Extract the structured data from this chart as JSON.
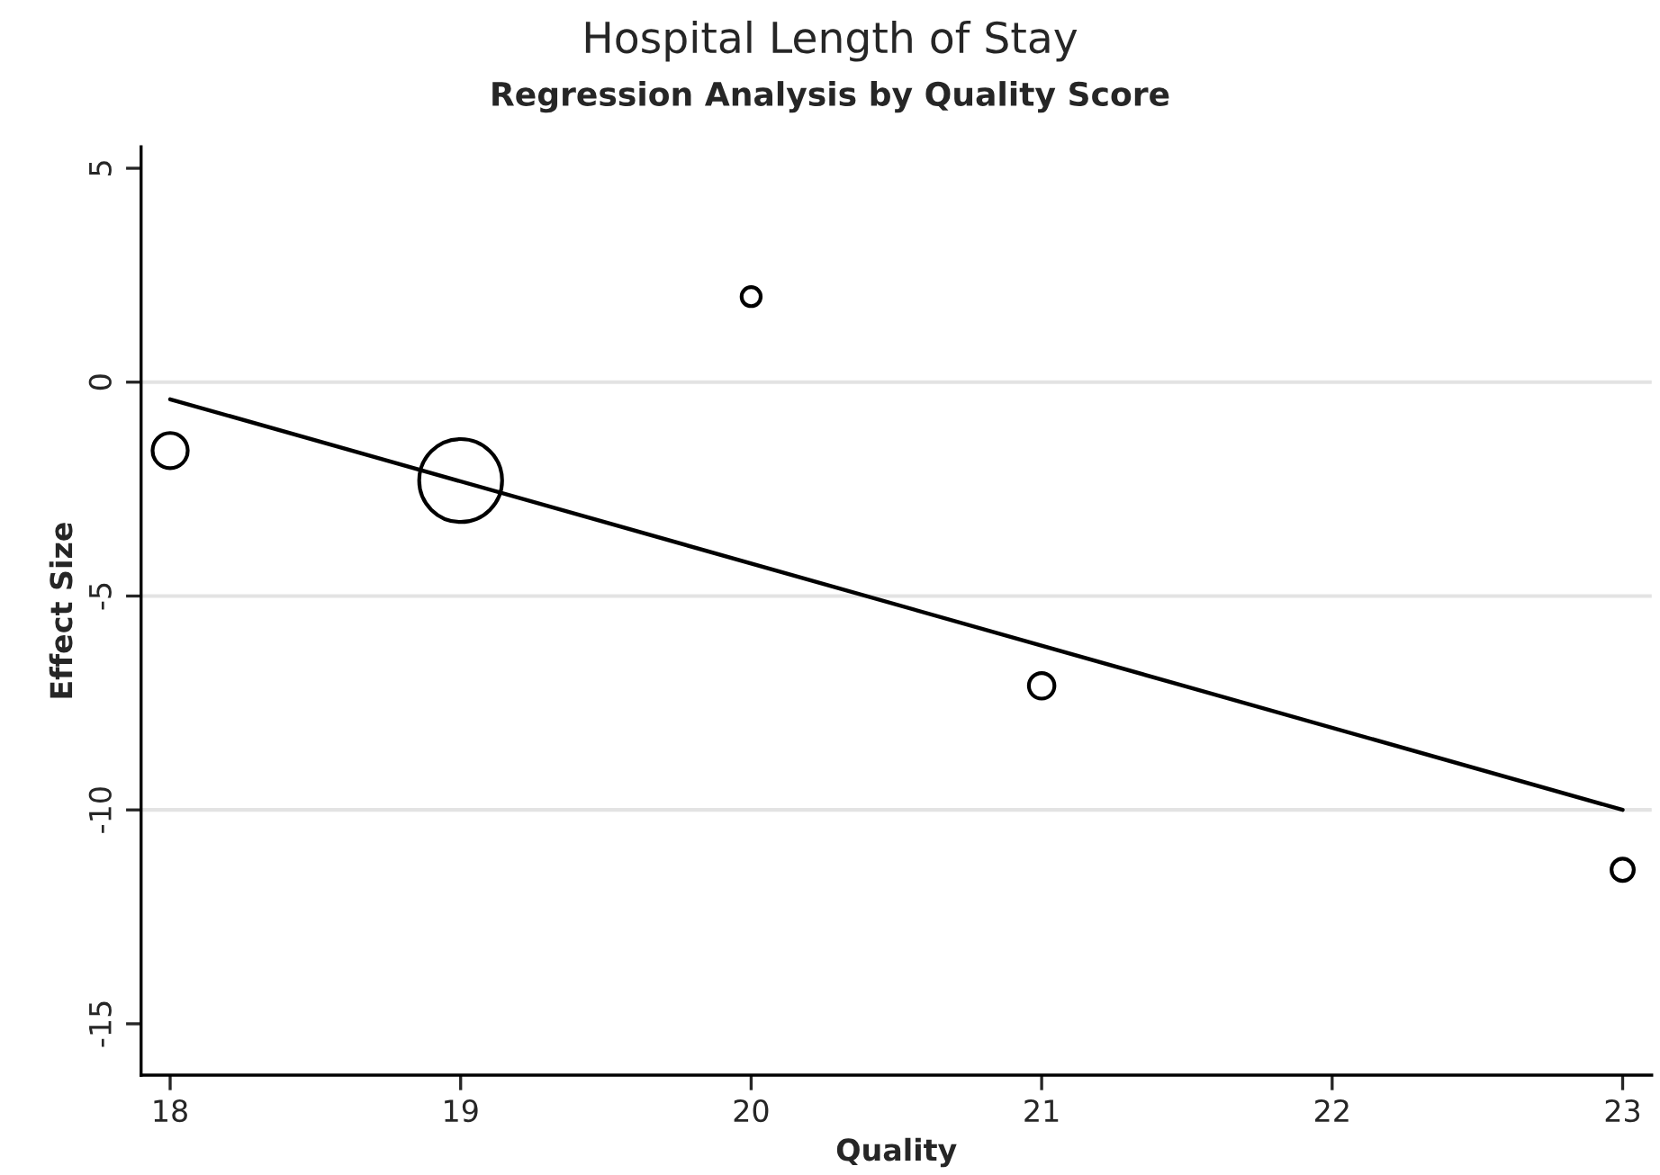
{
  "chart_data": {
    "type": "bubble",
    "title": "Hospital Length of Stay",
    "subtitle": "Regression Analysis by Quality Score",
    "xlabel": "Quality",
    "ylabel": "Effect Size",
    "x": [
      18,
      19,
      20,
      21,
      23
    ],
    "series": [
      {
        "color": "#000000",
        "values": [
          -1.6,
          -2.3,
          2.0,
          -7.1,
          -11.4
        ],
        "sizes": [
          0.18,
          1,
          0.053,
          0.095,
          0.072
        ]
      },
      {
        "type": "line",
        "color": "#000000",
        "x": [
          18,
          23
        ],
        "values": [
          -0.4,
          -10.0
        ]
      }
    ],
    "xlim": [
      17.9,
      23.1
    ],
    "ylim": [
      -16.2,
      5.5
    ],
    "xticks": [
      18,
      19,
      20,
      21,
      22,
      23
    ],
    "yticks": [
      -15,
      -10,
      -5,
      0,
      5
    ],
    "ref_lines": [
      {
        "axis": "y",
        "value": 0,
        "color": "#e3e3e3"
      },
      {
        "axis": "y",
        "value": -5,
        "color": "#e3e3e3"
      },
      {
        "axis": "y",
        "value": -10,
        "color": "#e3e3e3"
      }
    ],
    "legend": false,
    "grid": false
  }
}
